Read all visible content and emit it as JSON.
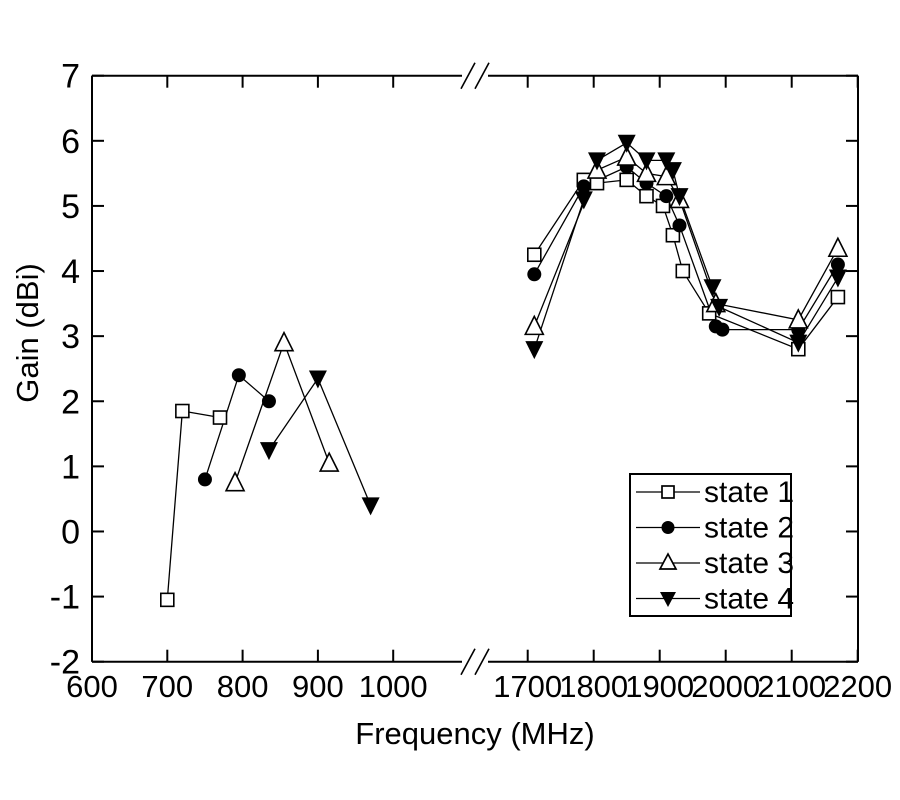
{
  "chart_data": {
    "type": "line",
    "title": "",
    "xlabel": "Frequency (MHz)",
    "ylabel": "Gain (dBi)",
    "grid": false,
    "legend_position": "lower right",
    "ylim": [
      -2,
      7
    ],
    "yticks": [
      7,
      6,
      5,
      4,
      3,
      2,
      1,
      0,
      -1,
      -2
    ],
    "x_axis_break": true,
    "x_left_segment_range": [
      600,
      1100
    ],
    "x_right_segment_range": [
      1640,
      2200
    ],
    "xticks_left": [
      600,
      700,
      800,
      900,
      1000
    ],
    "xticks_right": [
      1700,
      1800,
      1900,
      2000,
      2100,
      2200
    ],
    "line_color": "#000000",
    "background_color": "#ffffff",
    "series": [
      {
        "name": "state 1",
        "marker": "open-square",
        "points": [
          [
            700,
            -1.05
          ],
          [
            720,
            1.85
          ],
          [
            770,
            1.75
          ],
          [
            1710,
            4.25
          ],
          [
            1785,
            5.4
          ],
          [
            1805,
            5.35
          ],
          [
            1850,
            5.4
          ],
          [
            1880,
            5.15
          ],
          [
            1905,
            5.0
          ],
          [
            1920,
            4.55
          ],
          [
            1935,
            4.0
          ],
          [
            1975,
            3.35
          ],
          [
            2110,
            2.8
          ],
          [
            2170,
            3.6
          ]
        ]
      },
      {
        "name": "state 2",
        "marker": "filled-circle",
        "points": [
          [
            750,
            0.8
          ],
          [
            795,
            2.4
          ],
          [
            835,
            2.0
          ],
          [
            1710,
            3.95
          ],
          [
            1785,
            5.3
          ],
          [
            1850,
            5.6
          ],
          [
            1880,
            5.35
          ],
          [
            1910,
            5.15
          ],
          [
            1930,
            4.7
          ],
          [
            1985,
            3.15
          ],
          [
            1995,
            3.1
          ],
          [
            2110,
            3.1
          ],
          [
            2170,
            4.1
          ]
        ]
      },
      {
        "name": "state 3",
        "marker": "open-triangle-up",
        "points": [
          [
            790,
            0.75
          ],
          [
            855,
            2.9
          ],
          [
            915,
            1.05
          ],
          [
            1710,
            3.15
          ],
          [
            1805,
            5.55
          ],
          [
            1850,
            5.75
          ],
          [
            1880,
            5.5
          ],
          [
            1910,
            5.45
          ],
          [
            1930,
            5.1
          ],
          [
            1985,
            3.5
          ],
          [
            2110,
            3.25
          ],
          [
            2170,
            4.35
          ]
        ]
      },
      {
        "name": "state 4",
        "marker": "filled-triangle-down",
        "points": [
          [
            835,
            1.25
          ],
          [
            900,
            2.35
          ],
          [
            970,
            0.4
          ],
          [
            1710,
            2.8
          ],
          [
            1785,
            5.1
          ],
          [
            1805,
            5.7
          ],
          [
            1850,
            5.97
          ],
          [
            1880,
            5.7
          ],
          [
            1910,
            5.7
          ],
          [
            1920,
            5.55
          ],
          [
            1930,
            5.15
          ],
          [
            1980,
            3.75
          ],
          [
            1990,
            3.45
          ],
          [
            2110,
            2.9
          ],
          [
            2170,
            3.9
          ]
        ]
      }
    ]
  },
  "legend": {
    "entries": [
      "state 1",
      "state 2",
      "state 3",
      "state 4"
    ]
  }
}
